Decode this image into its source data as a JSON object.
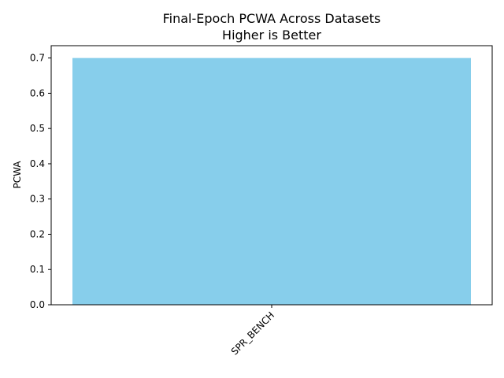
{
  "chart_data": {
    "type": "bar",
    "title": "Final-Epoch PCWA Across Datasets",
    "subtitle": "Higher is Better",
    "xlabel": "",
    "ylabel": "PCWA",
    "categories": [
      "SPR_BENCH"
    ],
    "values": [
      0.7
    ],
    "ylim": [
      0,
      0.735
    ],
    "yticks": [
      "0.0",
      "0.1",
      "0.2",
      "0.3",
      "0.4",
      "0.5",
      "0.6",
      "0.7"
    ],
    "bar_color": "#87ceeb",
    "grid": false,
    "legend": "none"
  }
}
